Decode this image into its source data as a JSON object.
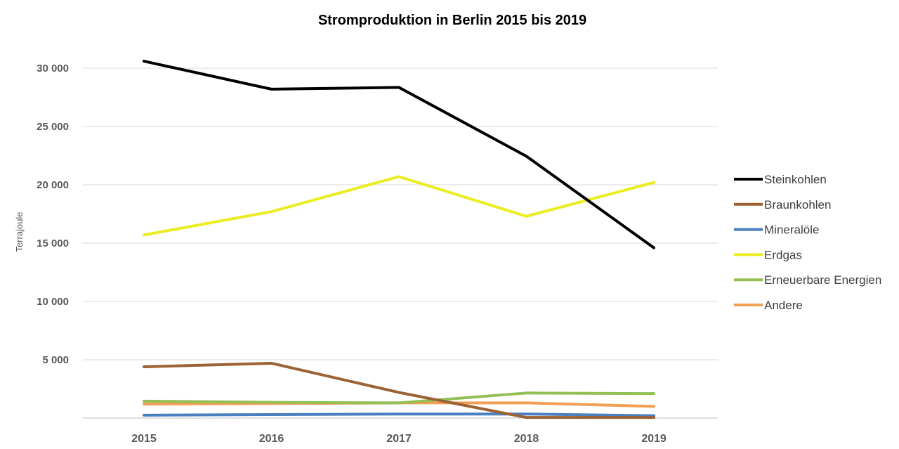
{
  "chart_data": {
    "type": "line",
    "title": "Stromproduktion in Berlin 2015 bis 2019",
    "xlabel": "",
    "ylabel": "Terrajoule",
    "categories": [
      "2015",
      "2016",
      "2017",
      "2018",
      "2019"
    ],
    "ylim": [
      0,
      30000
    ],
    "yticks": [
      {
        "value": 5000,
        "label": "5 000"
      },
      {
        "value": 10000,
        "label": "10 000"
      },
      {
        "value": 15000,
        "label": "15 000"
      },
      {
        "value": 20000,
        "label": "20 000"
      },
      {
        "value": 25000,
        "label": "25 000"
      },
      {
        "value": 30000,
        "label": "30 000"
      }
    ],
    "grid": true,
    "legend_position": "right",
    "series": [
      {
        "name": "Steinkohlen",
        "color": "#000000",
        "values": [
          30600,
          28200,
          28350,
          22450,
          14600
        ]
      },
      {
        "name": "Braunkohlen",
        "color": "#9c6233",
        "values": [
          4400,
          4700,
          2200,
          50,
          50
        ]
      },
      {
        "name": "Mineralöle",
        "color": "#4a7fc0",
        "values": [
          250,
          300,
          350,
          350,
          200
        ]
      },
      {
        "name": "Erdgas",
        "color": "#ecec22",
        "values": [
          15700,
          17700,
          20700,
          17300,
          20200
        ]
      },
      {
        "name": "Erneuerbare Energien",
        "color": "#93bf55",
        "values": [
          1450,
          1350,
          1300,
          2150,
          2100
        ]
      },
      {
        "name": "Andere",
        "color": "#f0a054",
        "values": [
          1200,
          1250,
          1300,
          1300,
          1000
        ]
      }
    ]
  }
}
